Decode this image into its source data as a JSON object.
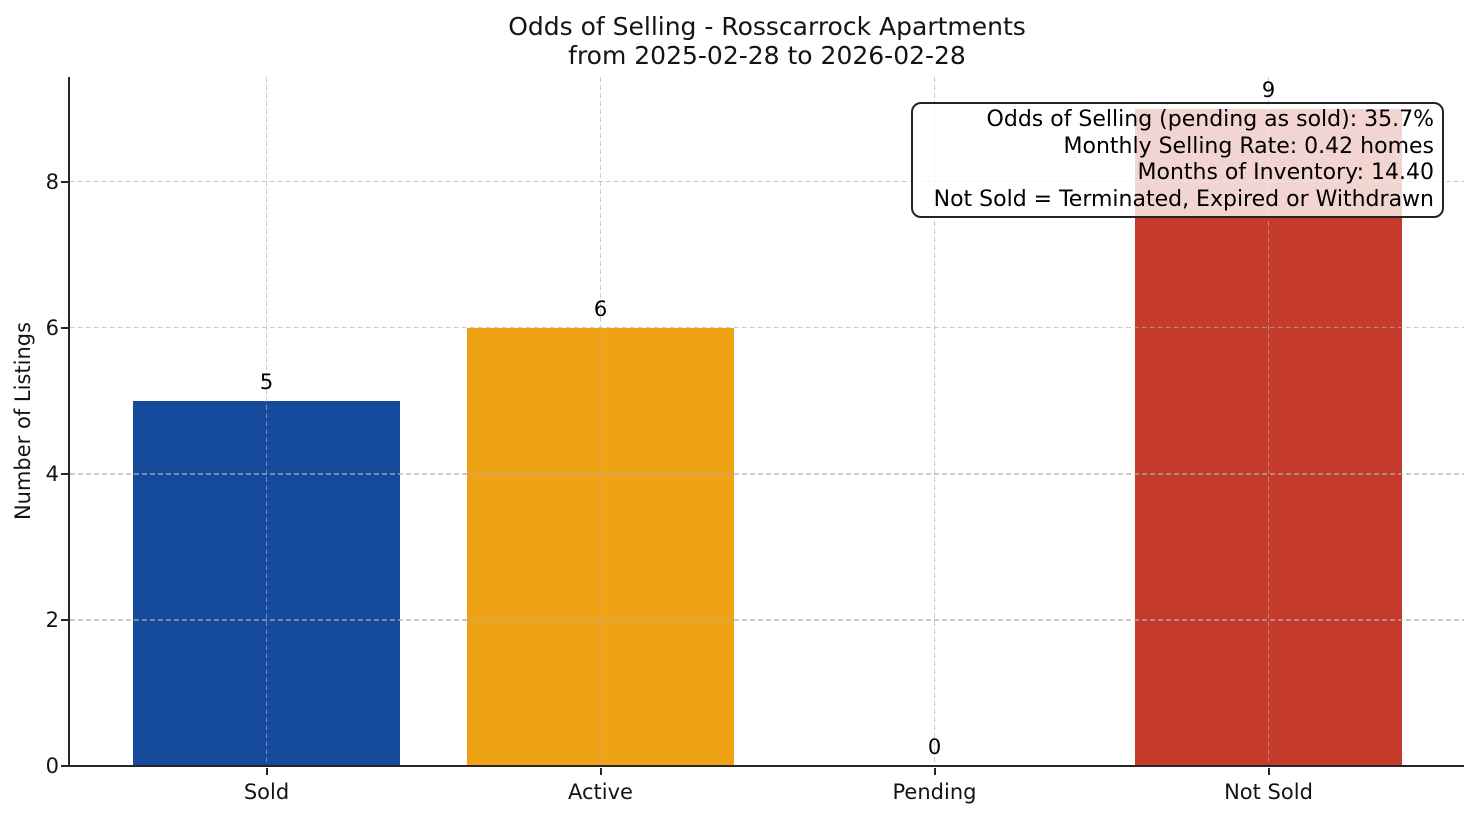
{
  "chart_data": {
    "type": "bar",
    "title": "Odds of Selling - Rosscarrock Apartments",
    "subtitle": "from 2025-02-28 to 2026-02-28",
    "categories": [
      "Sold",
      "Active",
      "Pending",
      "Not Sold"
    ],
    "values": [
      5,
      6,
      0,
      9
    ],
    "value_labels": [
      "5",
      "6",
      "0",
      "9"
    ],
    "bar_colors": [
      "#164a9c",
      "#f0a215",
      "#808080",
      "#c43b2b"
    ],
    "xlabel": "",
    "ylabel": "Number of Listings",
    "yticks": [
      0,
      2,
      4,
      6,
      8
    ],
    "ylim": [
      0,
      9.43
    ],
    "grid": "dashed horizontal and vertical",
    "legend_position": "none",
    "annotation_lines": [
      "Odds of Selling (pending as sold): 35.7%",
      "Monthly Selling Rate: 0.42 homes",
      "Months of Inventory: 14.40",
      "Not Sold = Terminated, Expired or Withdrawn"
    ]
  },
  "colors": {
    "sold_bar": "#164a9c",
    "active_bar": "#f0a215",
    "not_sold_bar": "#c43b2b",
    "grid": "#b0b0b0",
    "spine": "#262626",
    "text": "#141414",
    "annotation_border": "#242424",
    "annotation_bg": "#ffffff"
  }
}
